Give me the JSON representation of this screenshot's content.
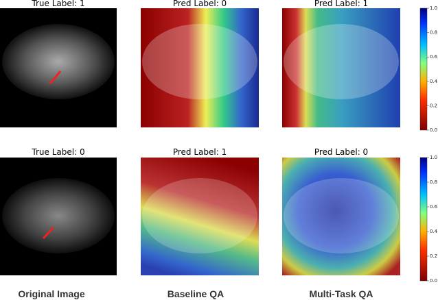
{
  "panels": [
    {
      "title": "True Label: 1"
    },
    {
      "title": "Pred Label: 0"
    },
    {
      "title": "Pred Label: 1"
    },
    {
      "title": "True Label: 0"
    },
    {
      "title": "Pred Label: 1"
    },
    {
      "title": "Pred Label: 0"
    }
  ],
  "column_labels": [
    "Original Image",
    "Baseline QA",
    "Multi-Task QA"
  ],
  "colorbars": [
    {
      "ticks": [
        "1.0",
        "0.8",
        "0.6",
        "0.4",
        "0.2",
        "0.0"
      ]
    },
    {
      "ticks": [
        "1.0",
        "0.8",
        "0.6",
        "0.4",
        "0.2",
        "0.0"
      ]
    }
  ]
}
